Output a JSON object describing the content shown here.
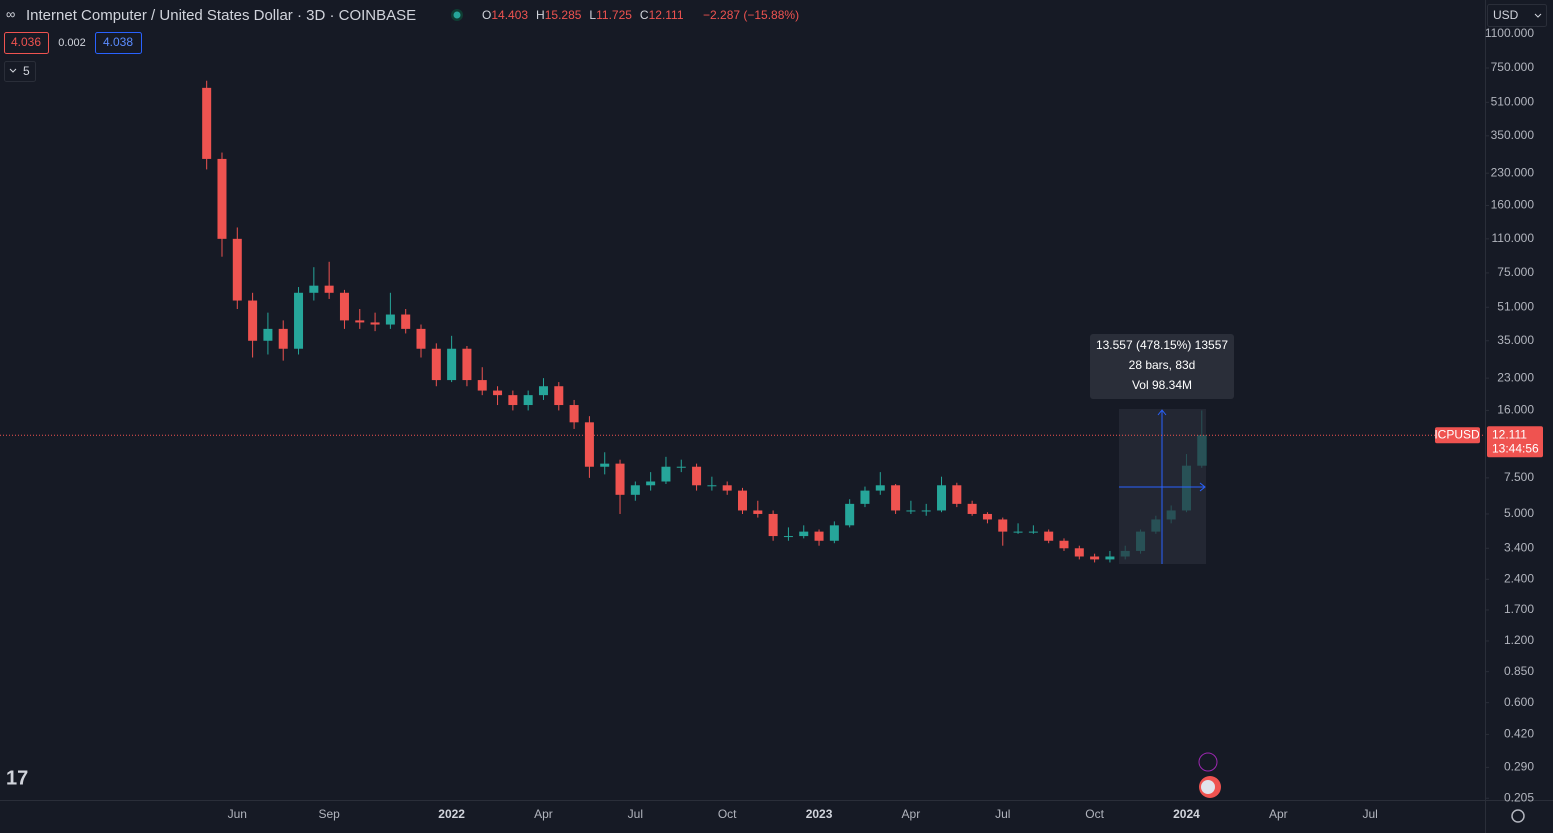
{
  "header": {
    "title": "Internet Computer / United States Dollar · 3D · COINBASE",
    "ohlc": [
      {
        "key": "O",
        "value": "14.403"
      },
      {
        "key": "H",
        "value": "15.285"
      },
      {
        "key": "L",
        "value": "11.725"
      },
      {
        "key": "C",
        "value": "12.111"
      }
    ],
    "change": "−2.287 (−15.88%)",
    "bid": "4.036",
    "spread": "0.002",
    "ask": "4.038",
    "indicators": "5",
    "currency": "USD"
  },
  "measure": {
    "lines": [
      "13.557 (478.15%) 13557",
      "28 bars, 83d",
      "Vol 98.34M"
    ]
  },
  "chart_data": {
    "type": "candlestick",
    "log_scale": true,
    "grid": false,
    "up_color": "#26a69a",
    "down_color": "#ef5350",
    "symbol": "ICPUSD",
    "last_price": 12.111,
    "countdown": "13:44:56",
    "categories": [
      null,
      null,
      null,
      null,
      null,
      null,
      null,
      null,
      null,
      null,
      null,
      null,
      null,
      null,
      null,
      "Jun",
      null,
      null,
      null,
      null,
      null,
      "Sep",
      null,
      null,
      null,
      null,
      null,
      null,
      null,
      "2022",
      null,
      null,
      null,
      null,
      null,
      "Apr",
      null,
      null,
      null,
      null,
      null,
      "Jul",
      null,
      null,
      null,
      null,
      null,
      "Oct",
      null,
      null,
      null,
      null,
      null,
      "2023",
      null,
      null,
      null,
      null,
      null,
      "Apr",
      null,
      null,
      null,
      null,
      null,
      "Jul",
      null,
      null,
      null,
      null,
      null,
      "Oct",
      null,
      null,
      null,
      null,
      null,
      "2024",
      null,
      null,
      null,
      null,
      null,
      "Apr",
      null,
      null,
      null,
      null,
      null,
      "Jul",
      null,
      null,
      null,
      null,
      null,
      null,
      null
    ],
    "open": [
      null,
      null,
      null,
      null,
      null,
      null,
      null,
      null,
      null,
      null,
      null,
      null,
      null,
      600,
      270,
      110,
      55,
      35,
      40,
      32,
      60,
      65,
      60,
      44,
      43,
      42,
      47,
      40,
      32,
      22.5,
      32,
      22.5,
      20,
      19,
      17,
      19,
      21,
      17,
      14,
      8.5,
      8.8,
      6.2,
      6.9,
      7.2,
      8.5,
      8.5,
      6.9,
      6.9,
      6.5,
      5.2,
      5,
      3.9,
      3.9,
      4.1,
      3.7,
      4.4,
      5.6,
      6.5,
      6.9,
      5.2,
      5.2,
      5.2,
      6.9,
      5.6,
      5,
      4.7,
      4.1,
      4.1,
      4.1,
      3.7,
      3.4,
      3.1,
      3,
      3.1,
      3.3,
      4.1,
      4.7,
      5.2,
      8.6,
      null,
      null,
      null,
      null,
      null,
      null,
      null,
      null,
      null,
      null,
      null,
      null,
      null,
      null,
      null,
      null,
      null,
      null
    ],
    "high": [
      null,
      null,
      null,
      null,
      null,
      null,
      null,
      null,
      null,
      null,
      null,
      null,
      null,
      650,
      290,
      125,
      60,
      48,
      44,
      64,
      80,
      85,
      62,
      50,
      48,
      60,
      50,
      42,
      34,
      37,
      33,
      26,
      21,
      20,
      20,
      23,
      22,
      18,
      15,
      10,
      9.2,
      7.2,
      8,
      9.5,
      9.2,
      8.8,
      7.6,
      7.2,
      6.7,
      5.8,
      5.2,
      4.3,
      4.4,
      4.2,
      4.6,
      5.9,
      6.8,
      8,
      7,
      5.8,
      5.6,
      7.6,
      7.1,
      5.8,
      5.1,
      4.8,
      4.5,
      4.4,
      4.2,
      3.8,
      3.5,
      3.2,
      3.3,
      3.5,
      4.2,
      4.9,
      5.5,
      9.8,
      16,
      null,
      null,
      null,
      null,
      null,
      null,
      null,
      null,
      null,
      null,
      null,
      null,
      null,
      null,
      null,
      null,
      null,
      null
    ],
    "low": [
      null,
      null,
      null,
      null,
      null,
      null,
      null,
      null,
      null,
      null,
      null,
      null,
      null,
      240,
      90,
      50,
      29,
      30,
      28,
      30,
      55,
      56,
      40,
      40,
      39,
      40,
      38,
      29,
      21,
      22,
      21,
      19,
      17,
      16,
      16,
      18,
      16,
      13,
      7.5,
      7.8,
      5,
      5.8,
      6.5,
      7,
      8,
      6.5,
      6.5,
      6.2,
      5,
      4.8,
      3.7,
      3.7,
      3.8,
      3.5,
      3.6,
      4.3,
      5.4,
      6.2,
      5,
      5,
      4.9,
      5.1,
      5.4,
      4.9,
      4.5,
      3.5,
      4,
      4,
      3.6,
      3.3,
      3,
      2.9,
      2.9,
      3,
      3.2,
      4,
      4.5,
      5.1,
      8.4,
      null,
      null,
      null,
      null,
      null,
      null,
      null,
      null,
      null,
      null,
      null,
      null,
      null,
      null,
      null,
      null,
      null,
      null
    ],
    "close": [
      null,
      null,
      null,
      null,
      null,
      null,
      null,
      null,
      null,
      null,
      null,
      null,
      null,
      270,
      110,
      55,
      35,
      40,
      32,
      60,
      65,
      60,
      44,
      43,
      42,
      47,
      40,
      32,
      22.5,
      32,
      22.5,
      20,
      19,
      17,
      19,
      21,
      17,
      14,
      8.5,
      8.8,
      6.2,
      6.9,
      7.2,
      8.5,
      8.5,
      6.9,
      6.9,
      6.5,
      5.2,
      5,
      3.9,
      3.9,
      4.1,
      3.7,
      4.4,
      5.6,
      6.5,
      6.9,
      5.2,
      5.2,
      5.2,
      6.9,
      5.6,
      5,
      4.7,
      4.1,
      4.1,
      4.1,
      3.7,
      3.4,
      3.1,
      3,
      3.1,
      3.3,
      4.1,
      4.7,
      5.2,
      8.6,
      12.111,
      null,
      null,
      null,
      null,
      null,
      null,
      null,
      null,
      null,
      null,
      null,
      null,
      null,
      null,
      null,
      null,
      null,
      null
    ],
    "ylim": [
      0.201,
      1610
    ],
    "yticks": [
      {
        "value": 1100,
        "label": "1100.000"
      },
      {
        "value": 750,
        "label": "750.000"
      },
      {
        "value": 510,
        "label": "510.000"
      },
      {
        "value": 350,
        "label": "350.000"
      },
      {
        "value": 230,
        "label": "230.000"
      },
      {
        "value": 160,
        "label": "160.000"
      },
      {
        "value": 110,
        "label": "110.000"
      },
      {
        "value": 75,
        "label": "75.000"
      },
      {
        "value": 51,
        "label": "51.000"
      },
      {
        "value": 35,
        "label": "35.000"
      },
      {
        "value": 23,
        "label": "23.000"
      },
      {
        "value": 16,
        "label": "16.000"
      },
      {
        "value": 7.5,
        "label": "7.500"
      },
      {
        "value": 5,
        "label": "5.000"
      },
      {
        "value": 3.4,
        "label": "3.400"
      },
      {
        "value": 2.4,
        "label": "2.400"
      },
      {
        "value": 1.7,
        "label": "1.700"
      },
      {
        "value": 1.2,
        "label": "1.200"
      },
      {
        "value": 0.85,
        "label": "0.850"
      },
      {
        "value": 0.6,
        "label": "0.600"
      },
      {
        "value": 0.42,
        "label": "0.420"
      },
      {
        "value": 0.29,
        "label": "0.290"
      },
      {
        "value": 0.205,
        "label": "0.205"
      }
    ]
  }
}
